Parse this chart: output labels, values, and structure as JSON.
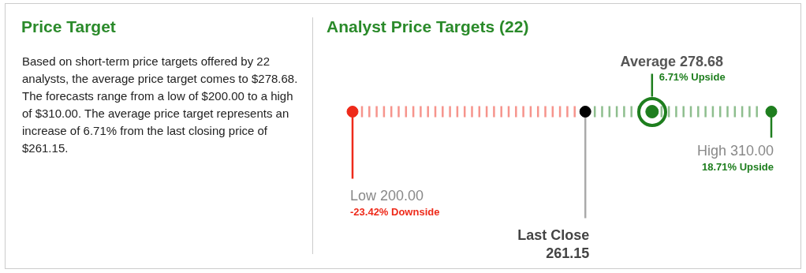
{
  "chart_data": [
    {
      "type": "other",
      "title": "Price Target",
      "annotations": [
        "Based on short-term price targets offered by 22 analysts, the average price target comes to $278.68. The forecasts range from a low of $200.00 to a high of $310.00. The average price target represents an increase of 6.71% from the last closing price of $261.15."
      ]
    },
    {
      "type": "other",
      "title": "Analyst Price Targets (22)",
      "categories": [
        "Low",
        "Last Close",
        "Average",
        "High"
      ],
      "values": [
        200,
        261.15,
        278.68,
        310
      ],
      "value_labels": [
        "200.00",
        "261.15",
        "278.68",
        "310.00"
      ],
      "colors": [
        "#ee2a1a",
        "#000000",
        "#1e7e1e",
        "#1e7e1e"
      ],
      "annotations": [
        "-23.42% Downside",
        "6.71% Upside",
        "18.71% Upside"
      ]
    }
  ]
}
